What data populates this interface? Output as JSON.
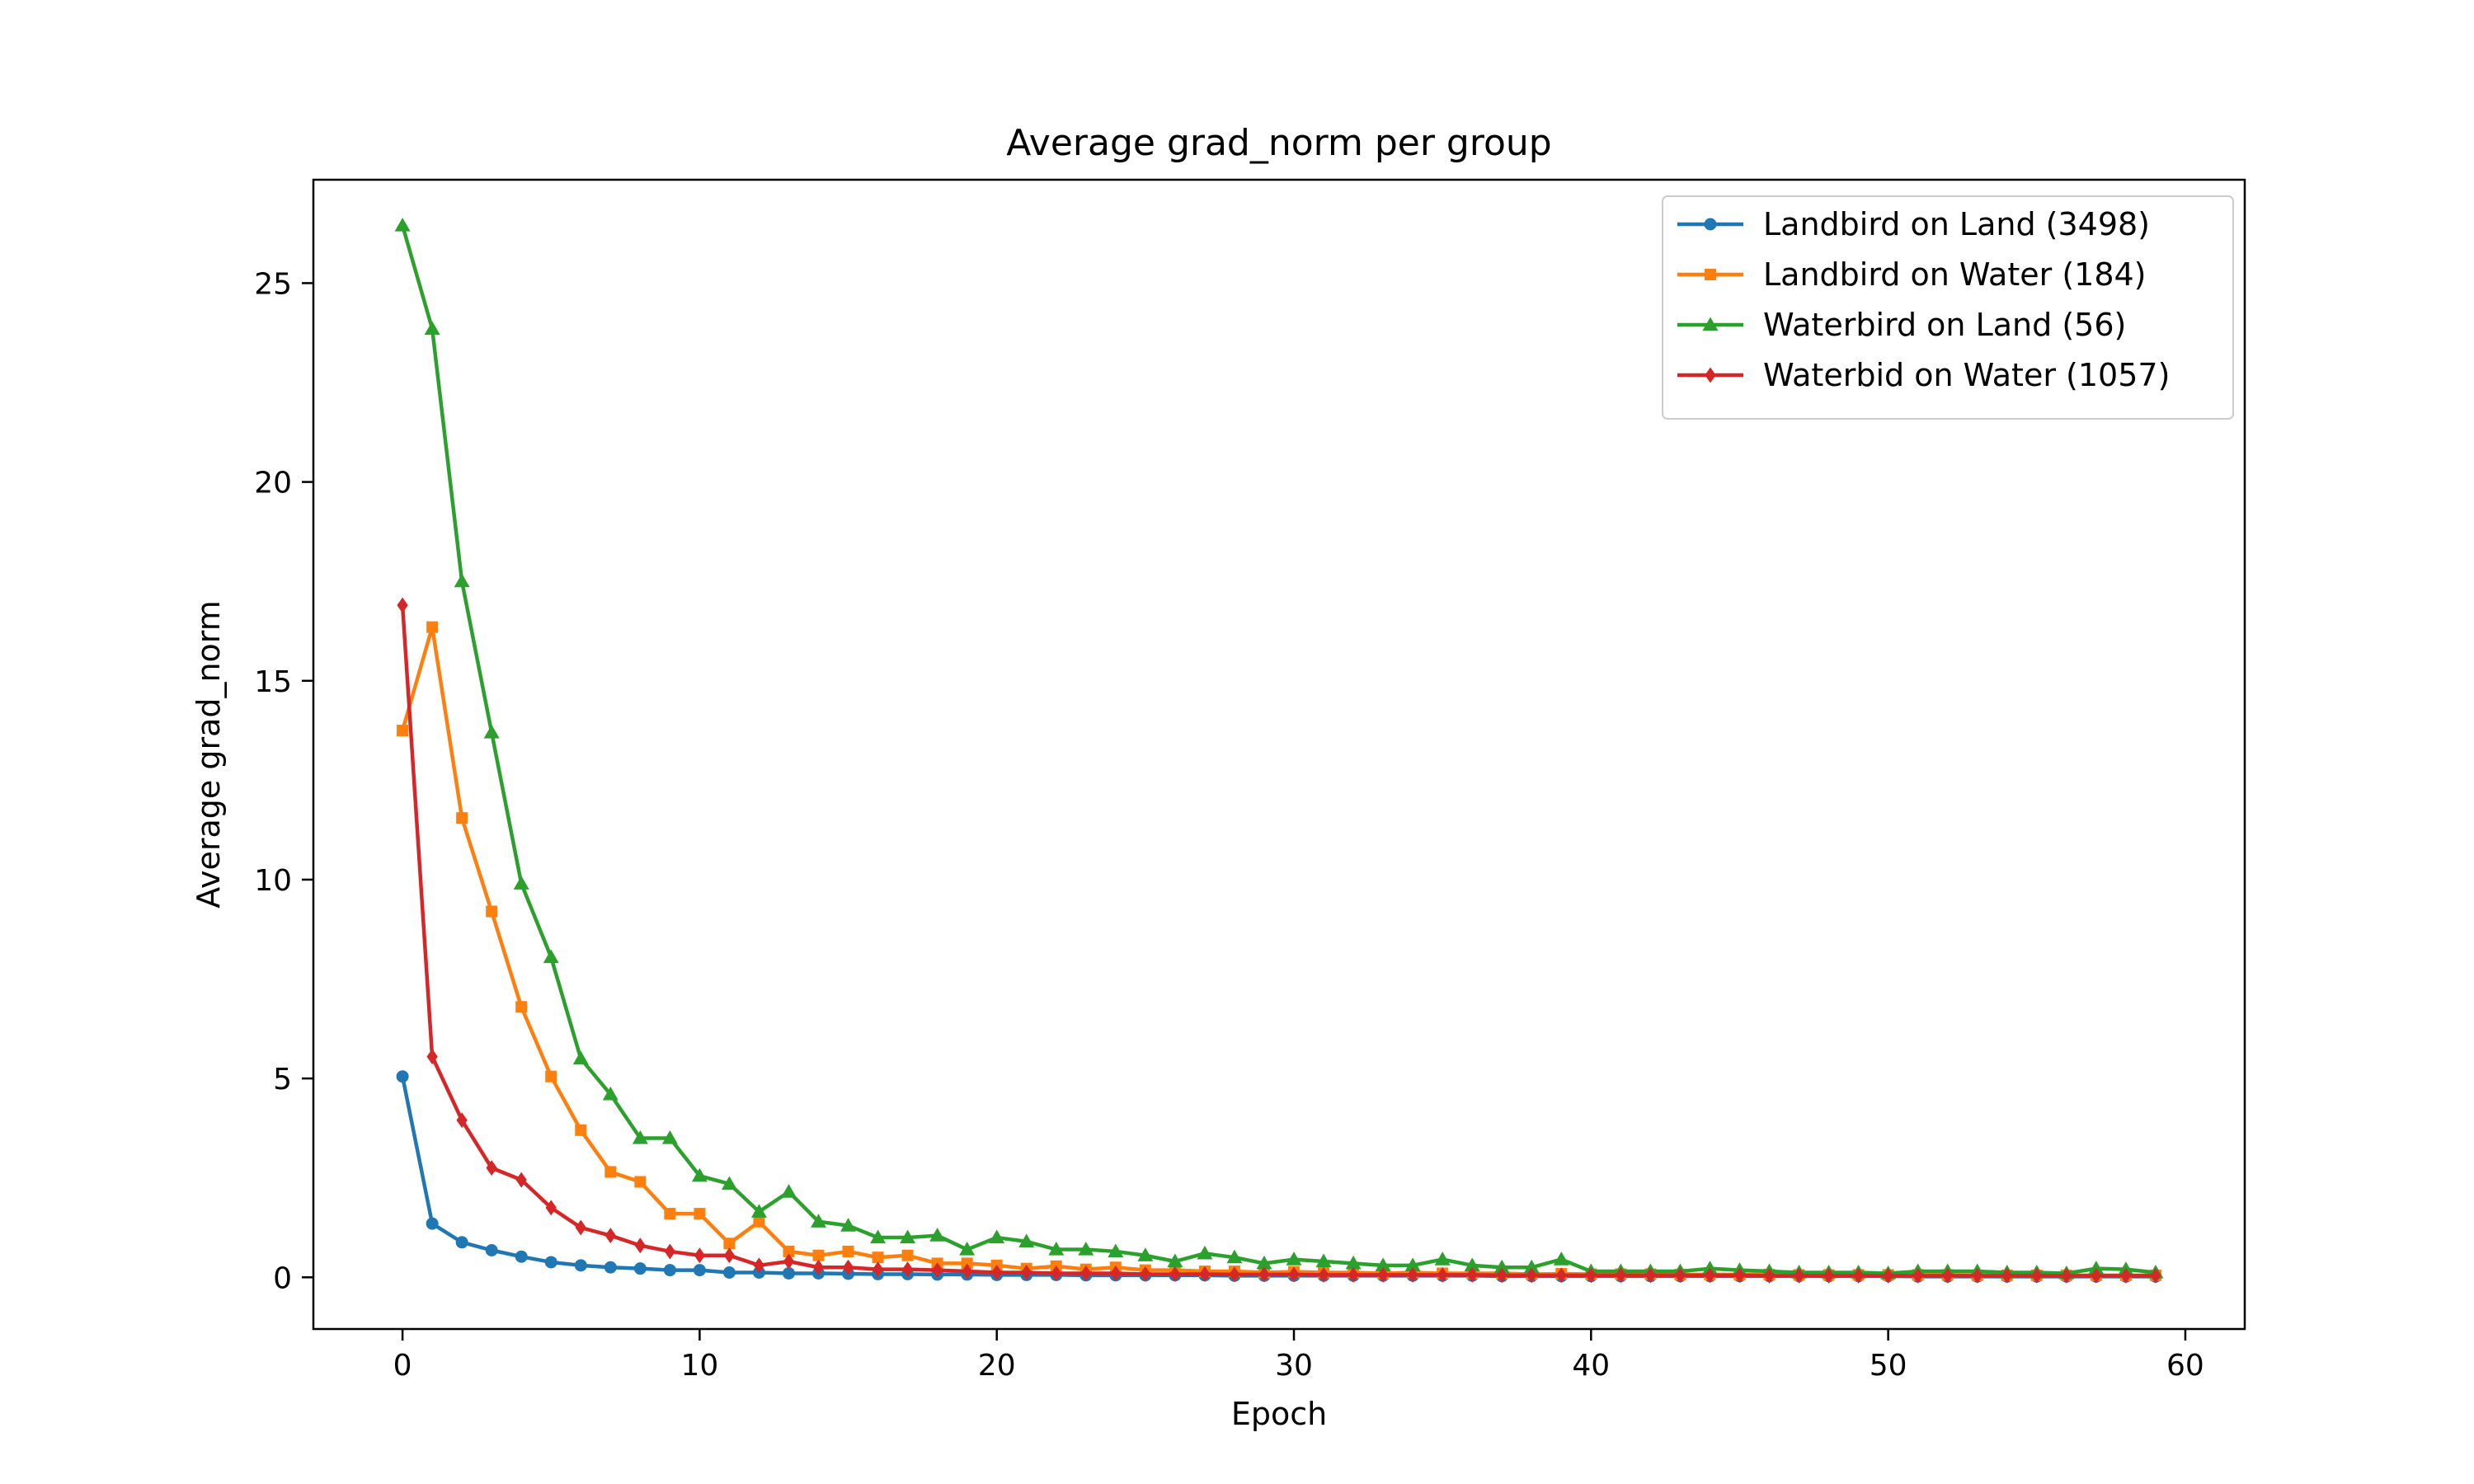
{
  "chart_data": {
    "type": "line",
    "title": "Average grad_norm per group",
    "xlabel": "Epoch",
    "ylabel": "Average grad_norm",
    "xlim": [
      -3,
      62
    ],
    "ylim": [
      -1.3,
      27.6
    ],
    "xticks": [
      0,
      10,
      20,
      30,
      40,
      50,
      60
    ],
    "yticks": [
      0,
      5,
      10,
      15,
      20,
      25
    ],
    "grid": false,
    "legend_position": "top-right",
    "x": [
      0,
      1,
      2,
      3,
      4,
      5,
      6,
      7,
      8,
      9,
      10,
      11,
      12,
      13,
      14,
      15,
      16,
      17,
      18,
      19,
      20,
      21,
      22,
      23,
      24,
      25,
      26,
      27,
      28,
      29,
      30,
      31,
      32,
      33,
      34,
      35,
      36,
      37,
      38,
      39,
      40,
      41,
      42,
      43,
      44,
      45,
      46,
      47,
      48,
      49,
      50,
      51,
      52,
      53,
      54,
      55,
      56,
      57,
      58,
      59
    ],
    "series": [
      {
        "name": "Landbird on Land (3498)",
        "color": "#1f77b4",
        "marker": "circle",
        "values": [
          5.05,
          1.35,
          0.88,
          0.68,
          0.52,
          0.38,
          0.3,
          0.25,
          0.22,
          0.18,
          0.18,
          0.12,
          0.12,
          0.1,
          0.1,
          0.09,
          0.08,
          0.08,
          0.07,
          0.07,
          0.06,
          0.06,
          0.06,
          0.05,
          0.05,
          0.05,
          0.05,
          0.05,
          0.04,
          0.04,
          0.04,
          0.04,
          0.04,
          0.04,
          0.04,
          0.04,
          0.04,
          0.03,
          0.03,
          0.03,
          0.03,
          0.03,
          0.03,
          0.03,
          0.03,
          0.03,
          0.03,
          0.03,
          0.03,
          0.03,
          0.03,
          0.02,
          0.02,
          0.02,
          0.02,
          0.02,
          0.02,
          0.02,
          0.02,
          0.02
        ]
      },
      {
        "name": "Landbird on Water (184)",
        "color": "#ff7f0e",
        "marker": "square",
        "values": [
          13.75,
          16.35,
          11.55,
          9.2,
          6.8,
          5.05,
          3.7,
          2.65,
          2.4,
          1.6,
          1.6,
          0.85,
          1.4,
          0.65,
          0.55,
          0.65,
          0.5,
          0.55,
          0.35,
          0.35,
          0.3,
          0.22,
          0.28,
          0.2,
          0.25,
          0.18,
          0.18,
          0.15,
          0.15,
          0.12,
          0.14,
          0.12,
          0.12,
          0.1,
          0.12,
          0.1,
          0.1,
          0.1,
          0.08,
          0.09,
          0.08,
          0.08,
          0.08,
          0.07,
          0.07,
          0.07,
          0.07,
          0.06,
          0.06,
          0.06,
          0.06,
          0.06,
          0.06,
          0.05,
          0.05,
          0.05,
          0.05,
          0.05,
          0.05,
          0.05
        ]
      },
      {
        "name": "Waterbird on Land (56)",
        "color": "#2ca02c",
        "marker": "triangle",
        "values": [
          26.45,
          23.85,
          17.5,
          13.7,
          9.9,
          8.05,
          5.5,
          4.6,
          3.5,
          3.5,
          2.55,
          2.35,
          1.65,
          2.15,
          1.4,
          1.3,
          1.0,
          1.0,
          1.05,
          0.7,
          1.0,
          0.9,
          0.7,
          0.7,
          0.65,
          0.55,
          0.4,
          0.6,
          0.5,
          0.35,
          0.45,
          0.4,
          0.35,
          0.3,
          0.3,
          0.45,
          0.3,
          0.25,
          0.25,
          0.45,
          0.15,
          0.15,
          0.15,
          0.15,
          0.22,
          0.18,
          0.15,
          0.12,
          0.12,
          0.12,
          0.1,
          0.15,
          0.15,
          0.15,
          0.12,
          0.12,
          0.1,
          0.22,
          0.2,
          0.12
        ]
      },
      {
        "name": "Waterbid on Water (1057)",
        "color": "#d62728",
        "marker": "diamond",
        "values": [
          16.9,
          5.55,
          3.95,
          2.75,
          2.45,
          1.75,
          1.25,
          1.05,
          0.8,
          0.65,
          0.55,
          0.55,
          0.3,
          0.4,
          0.25,
          0.25,
          0.2,
          0.2,
          0.18,
          0.15,
          0.12,
          0.12,
          0.1,
          0.1,
          0.1,
          0.08,
          0.08,
          0.08,
          0.07,
          0.07,
          0.07,
          0.06,
          0.06,
          0.06,
          0.06,
          0.06,
          0.06,
          0.05,
          0.05,
          0.05,
          0.05,
          0.05,
          0.05,
          0.05,
          0.05,
          0.05,
          0.04,
          0.04,
          0.04,
          0.04,
          0.04,
          0.04,
          0.04,
          0.04,
          0.04,
          0.04,
          0.04,
          0.04,
          0.04,
          0.04
        ]
      }
    ]
  }
}
